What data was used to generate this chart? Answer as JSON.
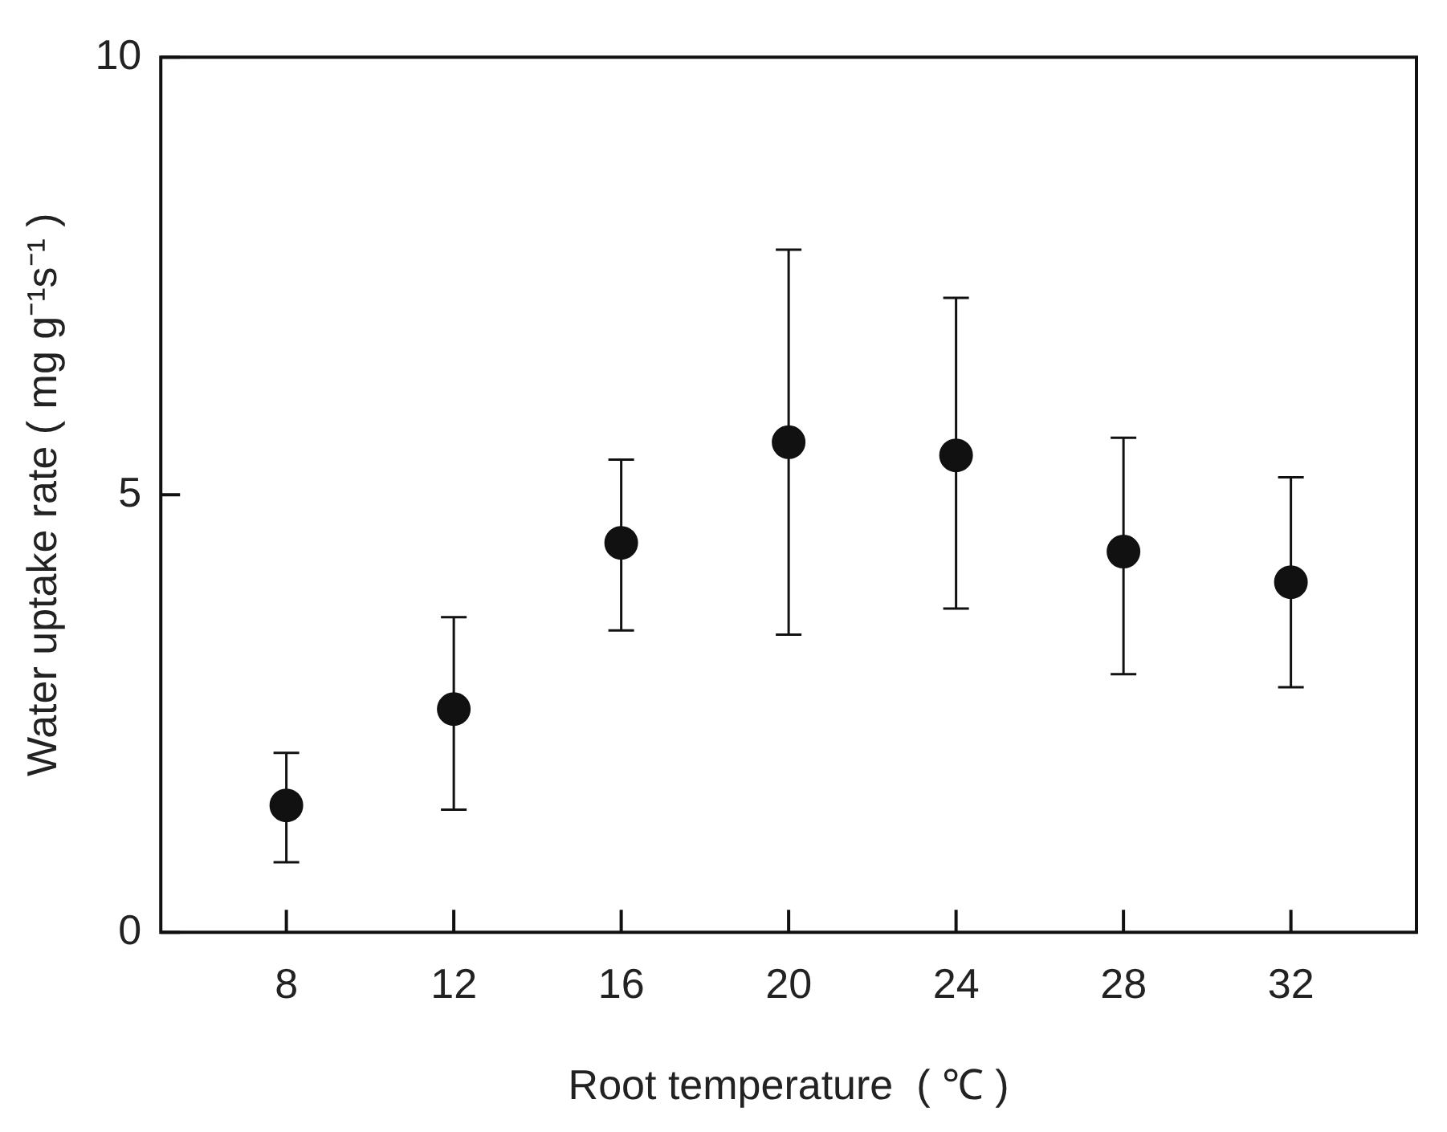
{
  "chart_data": {
    "type": "scatter",
    "xlabel": "Root temperature  ( ℃ )",
    "ylabel": "Water uptake rate ( mg g⁻¹s⁻¹ )",
    "x": [
      8,
      12,
      16,
      20,
      24,
      28,
      32
    ],
    "series": [
      {
        "color": "#111111",
        "values": [
          1.45,
          2.55,
          4.45,
          5.6,
          5.45,
          4.35,
          4.0
        ],
        "errors": [
          [
            0.8,
            2.05
          ],
          [
            1.4,
            3.6
          ],
          [
            3.45,
            5.4
          ],
          [
            3.4,
            7.8
          ],
          [
            3.7,
            7.25
          ],
          [
            2.95,
            5.65
          ],
          [
            2.8,
            5.2
          ]
        ]
      }
    ],
    "xlim": [
      5,
      35
    ],
    "xticks": [
      8,
      12,
      16,
      20,
      24,
      28,
      32
    ],
    "ylim": [
      0,
      10
    ],
    "yticks": [
      0,
      5,
      10
    ],
    "marker": "circle",
    "grid": false,
    "legend": false
  }
}
